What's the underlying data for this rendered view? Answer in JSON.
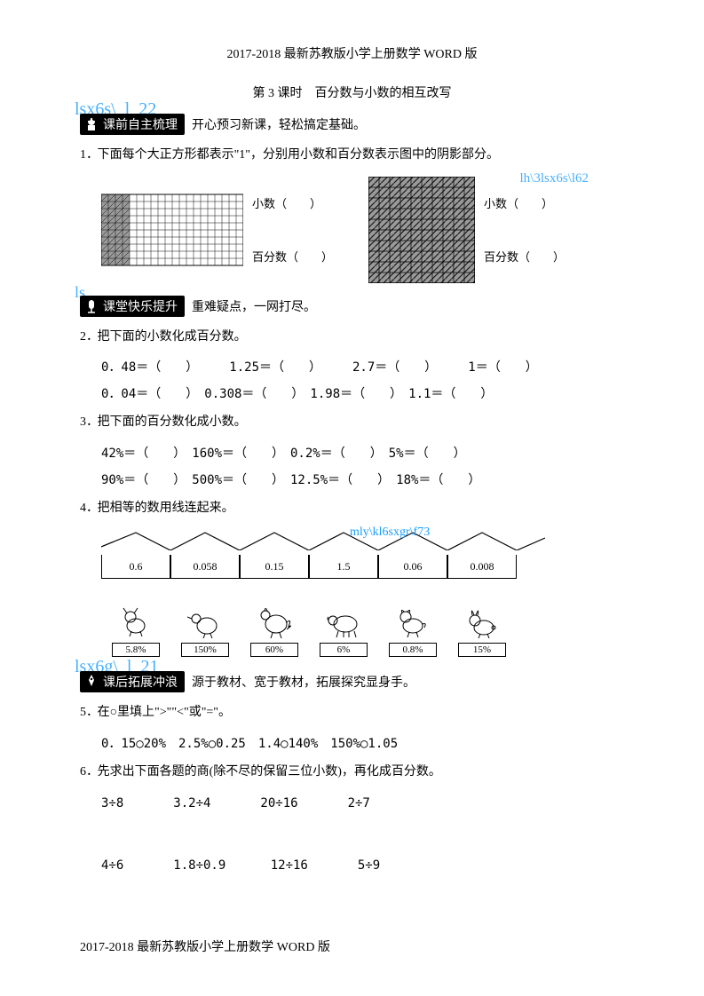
{
  "header": "2017-2018 最新苏教版小学上册数学 WORD 版",
  "footer": "2017-2018 最新苏教版小学上册数学 WORD 版",
  "title": "第 3 课时　百分数与小数的相互改写",
  "links": {
    "s1_overlay": "lsx6s\\_l_22",
    "grids_overlay": "lh\\3lsx6s\\l62",
    "s2_overlay": "lsv课堂快乐提升2",
    "houses_overlay": "mly\\kl6sxgr\\f73",
    "s3_overlay": "lsx6g\\_l_21"
  },
  "sections": {
    "s1": {
      "badge": "课前自主梳理",
      "caption": "开心预习新课，轻松搞定基础。"
    },
    "s2": {
      "badge": "课堂快乐提升",
      "caption": "重难疑点，一网打尽。"
    },
    "s3": {
      "badge": "课后拓展冲浪",
      "caption": "源于教材、宽于教材，拓展探究显身手。"
    }
  },
  "q1": {
    "text": "下面每个大正方形都表示\"1\"，分别用小数和百分数表示图中的阴影部分。",
    "grid1": {
      "shaded_cols": 4,
      "total_cols": 20,
      "rows": 10,
      "label_dec": "小数（　　）",
      "label_pct": "百分数（　　）"
    },
    "grid2": {
      "shaded_ratio_desc": "full-diagonal",
      "label_dec": "小数（　　）",
      "label_pct": "百分数（　　）"
    }
  },
  "q2": {
    "text": "把下面的小数化成百分数。",
    "row1": "0．48＝（　　）　　　1.25＝（　　）　　　2.7＝（　　）　　　1＝（　　）",
    "row2": "0．04＝（　　）　0.308＝（　　）　1.98＝（　　）　1.1＝（　　）"
  },
  "q3": {
    "text": "把下面的百分数化成小数。",
    "row1": "42%＝（　　）　160%＝（　　）　0.2%＝（　　）　5%＝（　　）",
    "row2": "90%＝（　　）　500%＝（　　）　12.5%＝（　　）　18%＝（　　）"
  },
  "q4": {
    "text": "把相等的数用线连起来。",
    "houses": [
      "0.6",
      "0.058",
      "0.15",
      "1.5",
      "0.06",
      "0.008"
    ],
    "animals": [
      "5.8%",
      "150%",
      "60%",
      "6%",
      "0.8%",
      "15%"
    ]
  },
  "q5": {
    "text": "在○里填上\">\"\"<\"或\"=\"。",
    "row": "0．15○20%　2.5%○0.25　1.4○140%　150%○1.05"
  },
  "q6": {
    "text": "先求出下面各题的商(除不尽的保留三位小数)，再化成百分数。",
    "row1": "3÷8　　　　3.2÷4　　　　20÷16　　　　2÷7",
    "row2": "4÷6　　　　1.8÷0.9　　　 12÷16　　　　5÷9"
  },
  "colors": {
    "text": "#000000",
    "link": "#1a9cff",
    "bg": "#ffffff",
    "shade": "#999999"
  }
}
